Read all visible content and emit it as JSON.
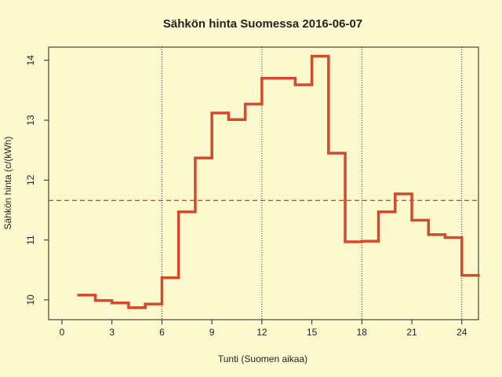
{
  "chart_data": {
    "type": "step",
    "title": "Sähkön hinta Suomessa 2016-06-07",
    "xlabel": "Tunti (Suomen aikaa)",
    "ylabel": "Sähkön hinta (c/(kWh)",
    "x": [
      1,
      2,
      3,
      4,
      5,
      6,
      7,
      8,
      9,
      10,
      11,
      12,
      13,
      14,
      15,
      16,
      17,
      18,
      19,
      20,
      21,
      22,
      23,
      24
    ],
    "series": [
      {
        "color": "#d24b2f",
        "values": [
          10.08,
          9.99,
          9.95,
          9.87,
          9.93,
          10.37,
          11.47,
          12.37,
          13.12,
          13.01,
          13.27,
          13.7,
          13.7,
          13.59,
          14.07,
          12.45,
          10.97,
          10.98,
          11.47,
          11.77,
          11.33,
          11.09,
          11.04,
          10.41
        ]
      }
    ],
    "mean": 11.66,
    "mean_color": "#b2403a",
    "vlines": [
      6,
      12,
      18,
      24
    ],
    "xlim": [
      -0.8,
      25
    ],
    "ylim": [
      9.67,
      14.22
    ],
    "xticks": [
      0,
      3,
      6,
      9,
      12,
      15,
      18,
      21,
      24
    ],
    "yticks": [
      10,
      11,
      12,
      13,
      14
    ]
  }
}
